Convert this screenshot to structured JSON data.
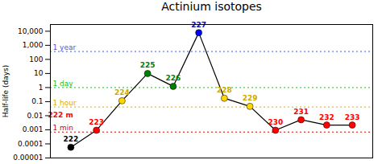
{
  "chart_data": {
    "type": "line",
    "title": "Actinium isotopes",
    "ylabel": "Half-life (days)",
    "x": [
      222,
      223,
      224,
      225,
      226,
      227,
      228,
      229,
      230,
      231,
      232,
      233
    ],
    "values": [
      5.8e-05,
      0.00093,
      0.115,
      10.0,
      1.224,
      7920,
      0.175,
      0.046,
      0.00093,
      0.00521,
      0.00217,
      0.00217
    ],
    "color": "black",
    "marker": "circle",
    "colors": [
      "black",
      "red",
      "gold",
      "green",
      "green",
      "blue",
      "gold",
      "gold",
      "red",
      "red",
      "red",
      "red"
    ],
    "log": "y",
    "grid": false,
    "tick_labels": "y",
    "xlim": [
      221.2,
      233.8
    ],
    "xticks": [],
    "ylim": [
      1e-05,
      30000
    ],
    "yticks": [
      1e-05,
      0.0001,
      0.001,
      0.01,
      0.1,
      1,
      10,
      100,
      {
        "value": 1000,
        "label": "1,000"
      },
      {
        "value": 10000,
        "label": "10,000"
      }
    ],
    "reference_lines": [
      {
        "y": 365.25,
        "label": "1 year",
        "color": "#4455ee",
        "line_style": "dotted"
      },
      {
        "y": 1.0,
        "label": "1 day",
        "color": "#22bb22",
        "line_style": "dotted"
      },
      {
        "y": 0.04167,
        "label": "1 hour",
        "color": "#ddaa00",
        "line_style": "dotted"
      },
      {
        "y": 0.0006944,
        "label": "1 min",
        "color": "#dd0000",
        "line_style": "dotted"
      }
    ],
    "annotations": [
      {
        "text": "222",
        "x": 222,
        "y": 5.8e-05,
        "color": "black"
      },
      {
        "text": "223",
        "x": 223,
        "y": 0.00093,
        "color": "red"
      },
      {
        "text": "224",
        "x": 224,
        "y": 0.115,
        "color": "#ccaa00"
      },
      {
        "text": "225",
        "x": 225,
        "y": 10.0,
        "color": "green"
      },
      {
        "text": "226",
        "x": 226,
        "y": 1.224,
        "color": "green"
      },
      {
        "text": "227",
        "x": 227,
        "y": 7920,
        "color": "blue"
      },
      {
        "text": "228",
        "x": 228,
        "y": 0.175,
        "color": "#ccaa00"
      },
      {
        "text": "229",
        "x": 229,
        "y": 0.046,
        "color": "#ccaa00"
      },
      {
        "text": "230",
        "x": 230,
        "y": 0.00093,
        "color": "red"
      },
      {
        "text": "231",
        "x": 231,
        "y": 0.00521,
        "color": "red"
      },
      {
        "text": "232",
        "x": 232,
        "y": 0.00217,
        "color": "red"
      },
      {
        "text": "233",
        "x": 233,
        "y": 0.00217,
        "color": "red"
      },
      {
        "text": "222 m",
        "x": 221.6,
        "y": 0.0029409182,
        "color": "red"
      }
    ]
  }
}
